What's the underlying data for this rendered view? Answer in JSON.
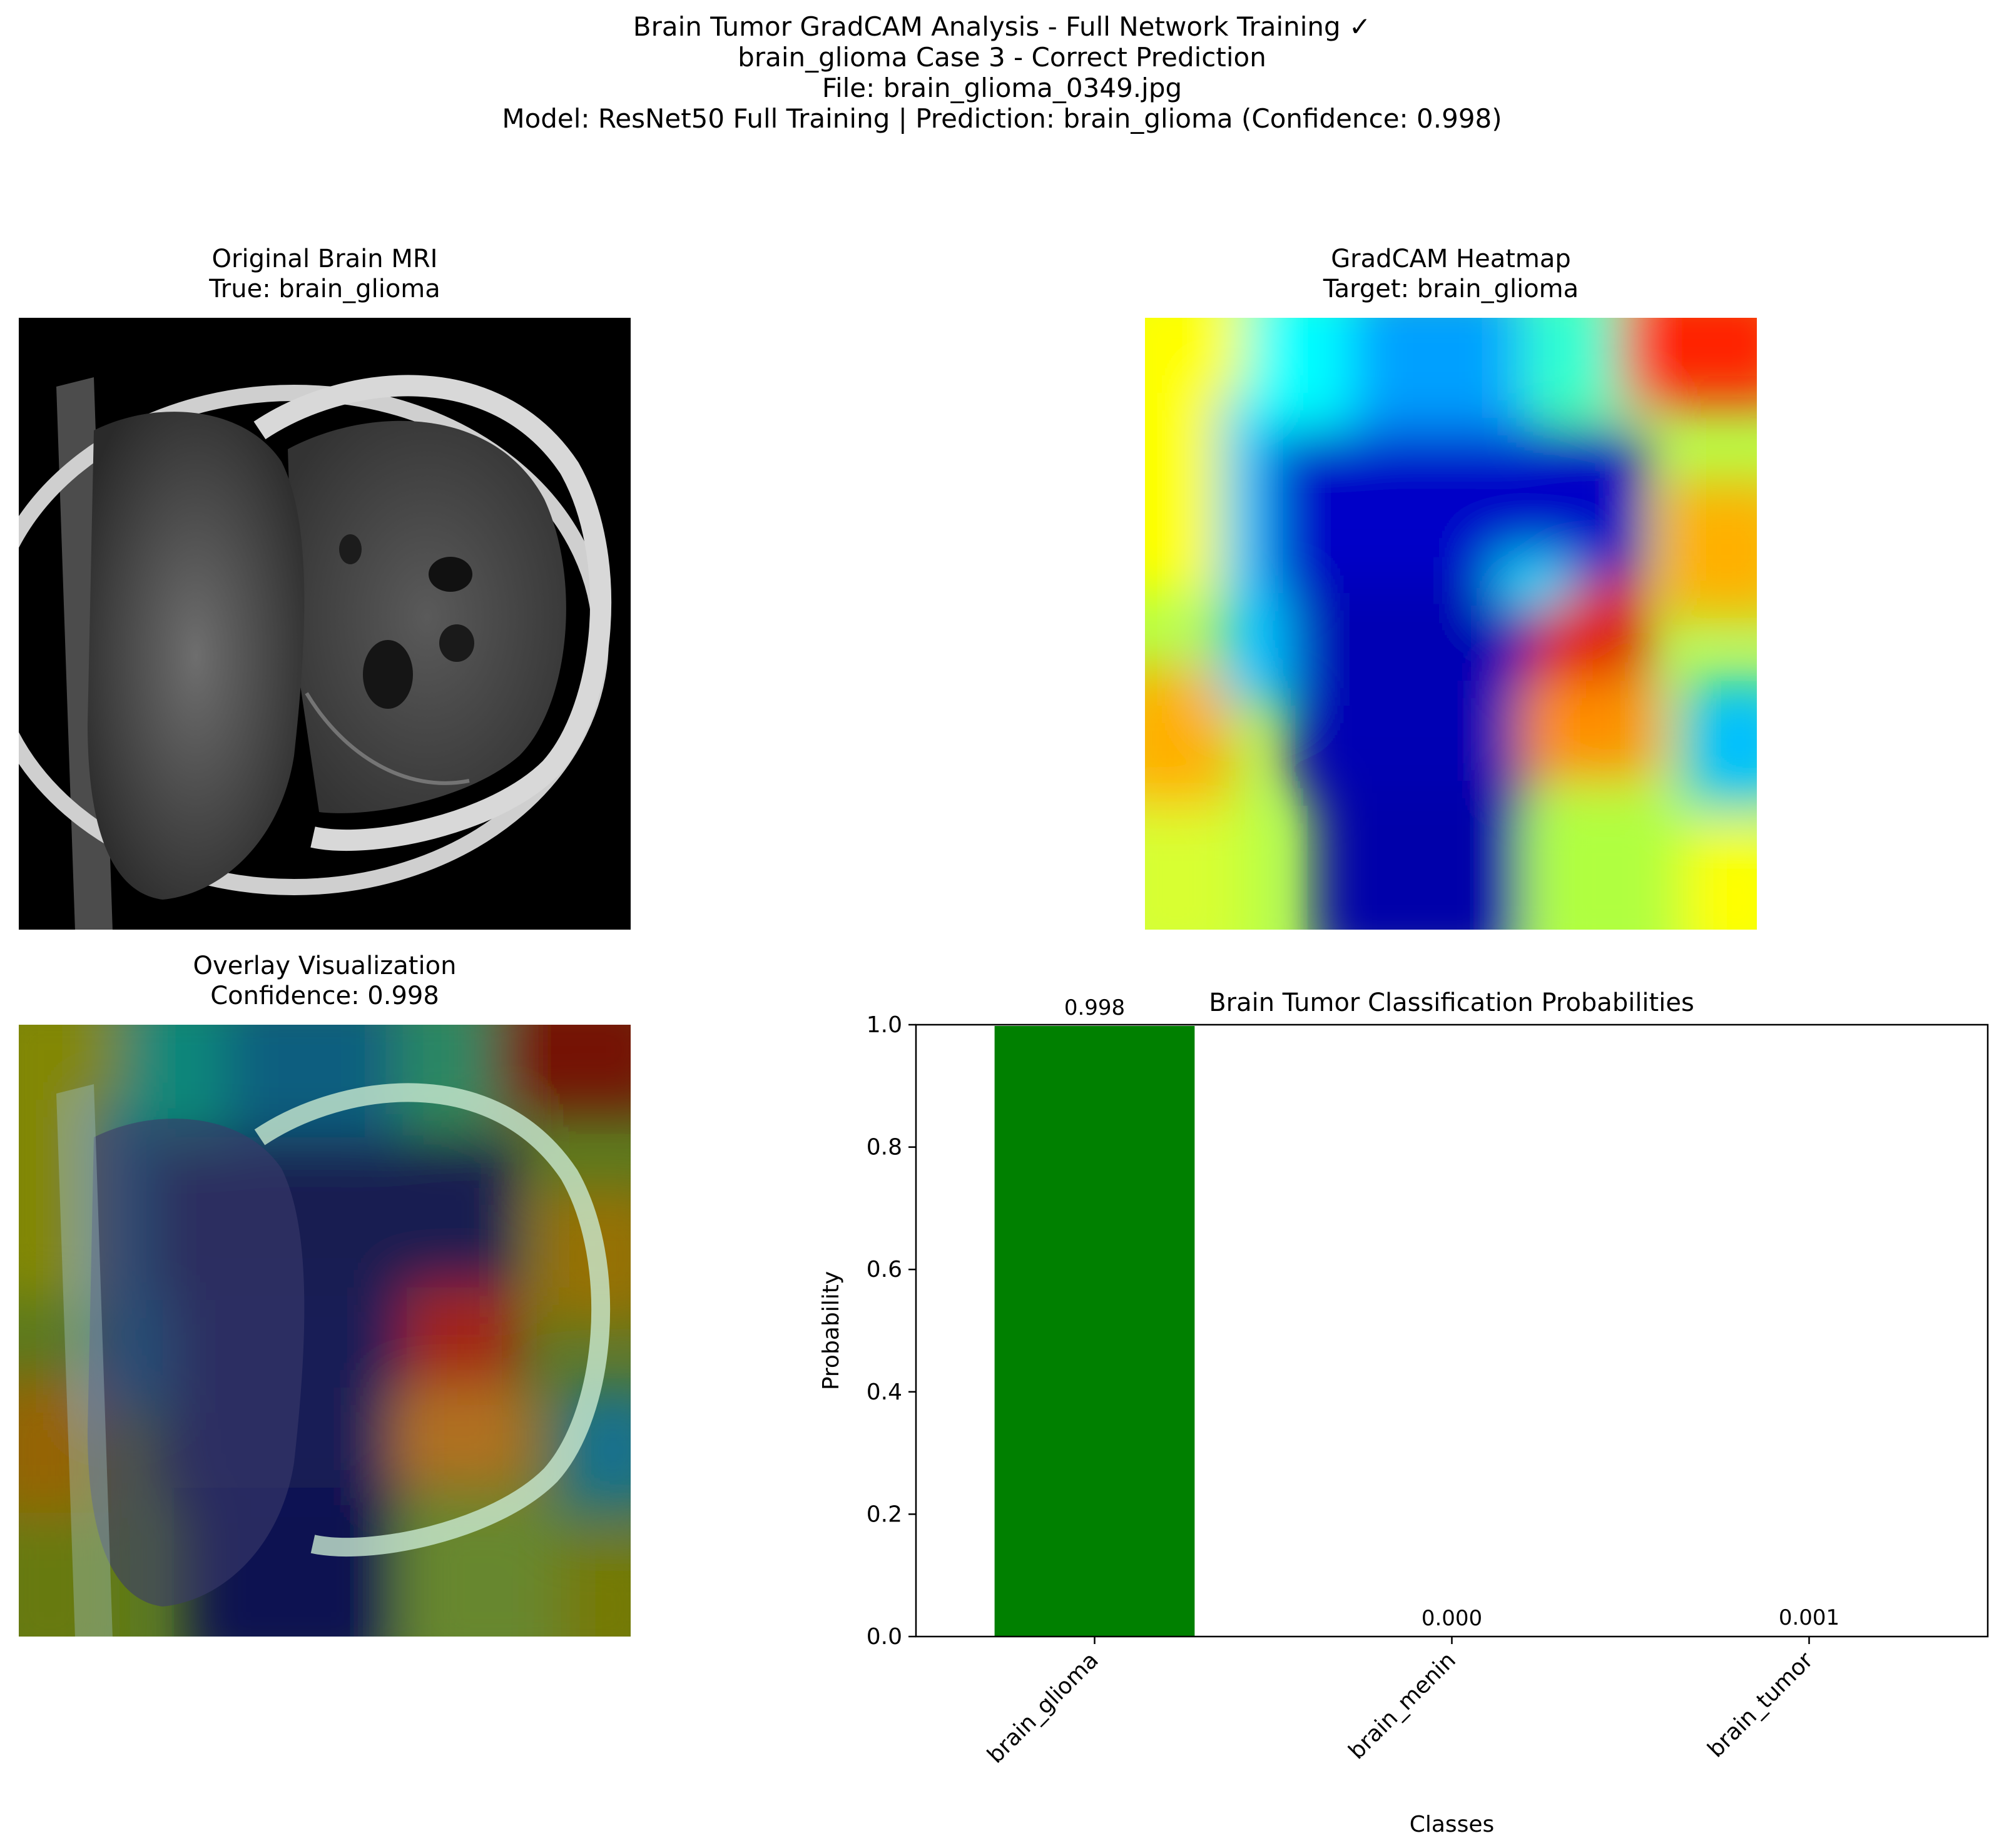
{
  "figure": {
    "suptitle_lines": [
      "Brain Tumor GradCAM Analysis - Full Network Training ✓",
      "brain_glioma Case 3 - Correct Prediction",
      "File: brain_glioma_0349.jpg",
      "Model: ResNet50 Full Training | Prediction: brain_glioma (Confidence: 0.998)"
    ]
  },
  "panels": {
    "original": {
      "title": "Original Brain MRI",
      "subtitle": "True: brain_glioma"
    },
    "heatmap": {
      "title": "GradCAM Heatmap",
      "subtitle": "Target: brain_glioma"
    },
    "overlay": {
      "title": "Overlay Visualization",
      "subtitle": "Confidence: 0.998"
    }
  },
  "chart_data": {
    "type": "bar",
    "title": "Brain Tumor Classification Probabilities",
    "xlabel": "Classes",
    "ylabel": "Probability",
    "categories": [
      "brain_glioma",
      "brain_menin",
      "brain_tumor"
    ],
    "values": [
      0.998,
      0.0,
      0.001
    ],
    "value_labels": [
      "0.998",
      "0.000",
      "0.001"
    ],
    "ylim": [
      0,
      1.0
    ],
    "yticks": [
      "0.0",
      "0.2",
      "0.4",
      "0.6",
      "0.8",
      "1.0"
    ],
    "bar_color": "#008000",
    "grid": false,
    "legend": "none"
  }
}
